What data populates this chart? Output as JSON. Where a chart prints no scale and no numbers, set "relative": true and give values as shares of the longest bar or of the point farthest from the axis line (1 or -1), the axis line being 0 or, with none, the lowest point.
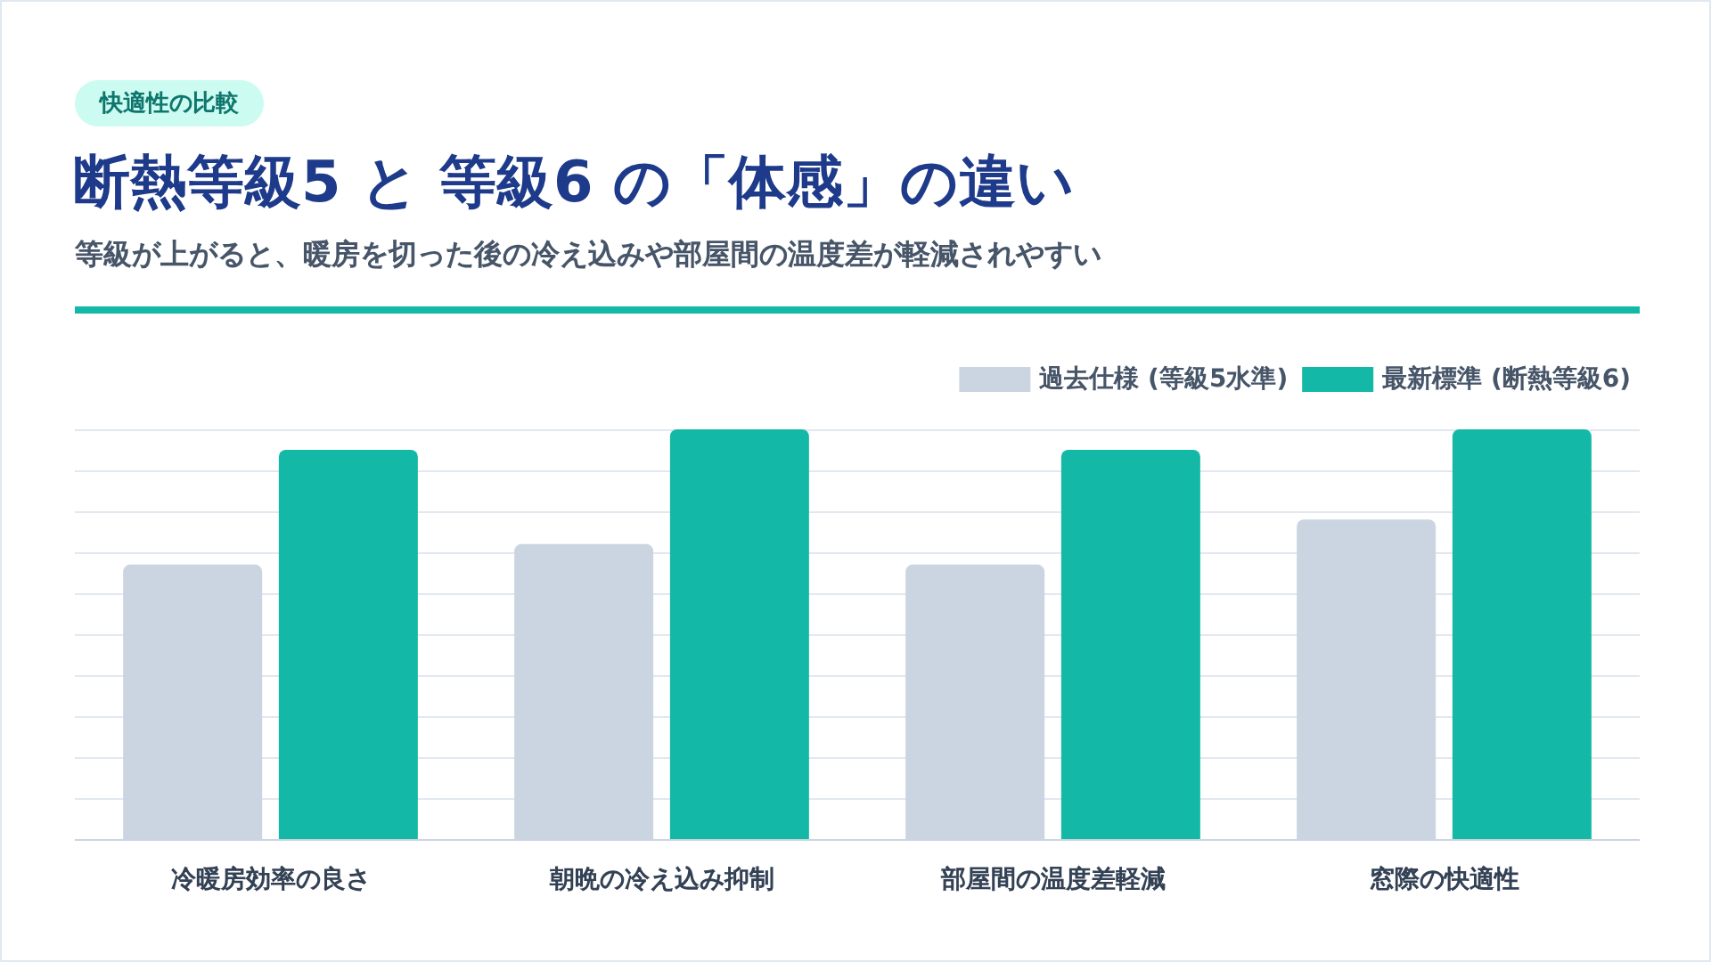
{
  "chart_data": {
    "type": "bar",
    "title": "断熱等級5 と 等級6 の「体感」の違い",
    "subtitle": "等級が上がると、暖房を切った後の冷え込みや部屋間の温度差が軽減されやすい",
    "annotations": [
      "快適性の比較"
    ],
    "categories": [
      "冷暖房効率の良さ",
      "朝晩の冷え込み抑制",
      "部屋間の温度差軽減",
      "窓際の快適性"
    ],
    "series": [
      {
        "name": "過去仕様 (等級5水準)",
        "color": "#cbd5e1",
        "values": [
          0.67,
          0.72,
          0.67,
          0.78
        ]
      },
      {
        "name": "最新標準 (断熱等級6)",
        "color": "#14b8a6",
        "values": [
          0.95,
          1,
          0.95,
          1
        ]
      }
    ],
    "relative": true,
    "grid": "y",
    "legend": "top right"
  }
}
